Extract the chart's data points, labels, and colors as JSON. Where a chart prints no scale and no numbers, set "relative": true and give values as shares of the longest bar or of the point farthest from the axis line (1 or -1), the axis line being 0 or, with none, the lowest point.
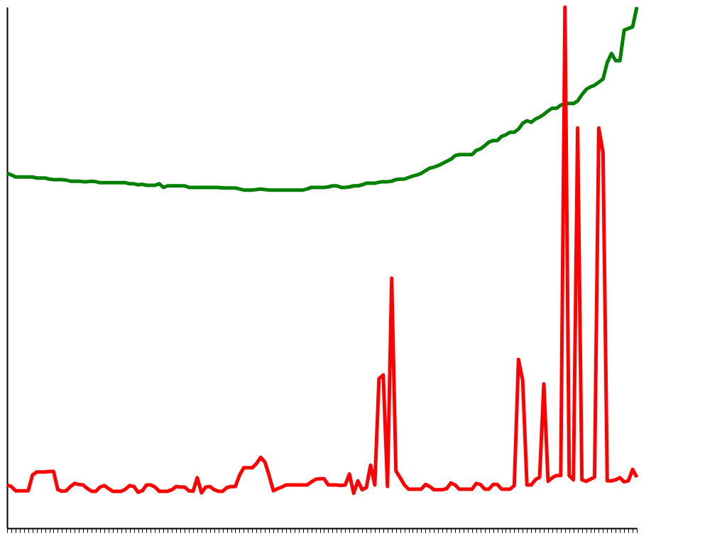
{
  "chart_data": {
    "type": "line",
    "relative": true,
    "categories": [
      null,
      null,
      null,
      null,
      null,
      null,
      null,
      null,
      null,
      null,
      null,
      null,
      null,
      null,
      null,
      null,
      null,
      null,
      null,
      null,
      null,
      null,
      null,
      null,
      null,
      null,
      null,
      null,
      null,
      null,
      null,
      null,
      null,
      null,
      null,
      null,
      null,
      null,
      null,
      null,
      null,
      null,
      null,
      null,
      null,
      null,
      null,
      null,
      null,
      null,
      null,
      null,
      null,
      null,
      null,
      null,
      null,
      null,
      null,
      null,
      null,
      null,
      null,
      null,
      null,
      null,
      null,
      null,
      null,
      null,
      null,
      null,
      null,
      null,
      null,
      null,
      null,
      null,
      null,
      null,
      null,
      null,
      null,
      null,
      null,
      null,
      null,
      null,
      null,
      null,
      null,
      null,
      null,
      null,
      null,
      null,
      null,
      null,
      null,
      null,
      null,
      null,
      null,
      null,
      null,
      null,
      null,
      null,
      null,
      null,
      null,
      null,
      null,
      null,
      null,
      null,
      null,
      null,
      null,
      null,
      null,
      null,
      null,
      null,
      null,
      null,
      null,
      null,
      null,
      null,
      null,
      null,
      null,
      null,
      null,
      null,
      null,
      null,
      null,
      null,
      null,
      null,
      null,
      null,
      null,
      null,
      null,
      null,
      null,
      null
    ],
    "series": [
      {
        "color": "#008000",
        "values": [
          0.681,
          0.678,
          0.674,
          0.674,
          0.674,
          0.674,
          0.674,
          0.672,
          0.672,
          0.672,
          0.67,
          0.669,
          0.669,
          0.669,
          0.668,
          0.666,
          0.666,
          0.666,
          0.665,
          0.665,
          0.666,
          0.665,
          0.663,
          0.663,
          0.663,
          0.663,
          0.663,
          0.663,
          0.663,
          0.661,
          0.661,
          0.659,
          0.66,
          0.658,
          0.658,
          0.658,
          0.661,
          0.654,
          0.657,
          0.657,
          0.657,
          0.657,
          0.657,
          0.654,
          0.654,
          0.654,
          0.654,
          0.654,
          0.654,
          0.654,
          0.654,
          0.653,
          0.653,
          0.653,
          0.653,
          0.651,
          0.649,
          0.649,
          0.649,
          0.65,
          0.651,
          0.65,
          0.649,
          0.649,
          0.649,
          0.649,
          0.649,
          0.649,
          0.649,
          0.649,
          0.649,
          0.651,
          0.654,
          0.654,
          0.654,
          0.654,
          0.655,
          0.657,
          0.657,
          0.654,
          0.654,
          0.655,
          0.657,
          0.657,
          0.659,
          0.662,
          0.662,
          0.662,
          0.664,
          0.665,
          0.665,
          0.666,
          0.669,
          0.67,
          0.67,
          0.673,
          0.676,
          0.678,
          0.681,
          0.686,
          0.691,
          0.693,
          0.696,
          0.7,
          0.704,
          0.708,
          0.715,
          0.717,
          0.717,
          0.717,
          0.717,
          0.725,
          0.728,
          0.734,
          0.741,
          0.744,
          0.744,
          0.752,
          0.755,
          0.76,
          0.76,
          0.766,
          0.777,
          0.782,
          0.779,
          0.785,
          0.789,
          0.794,
          0.801,
          0.806,
          0.806,
          0.812,
          0.815,
          0.815,
          0.815,
          0.82,
          0.832,
          0.842,
          0.847,
          0.85,
          0.856,
          0.862,
          0.894,
          0.911,
          0.897,
          0.897,
          0.956,
          0.959,
          0.962,
          1
        ]
      },
      {
        "color": "#ff0000",
        "values": [
          0.083,
          0.08,
          0.072,
          0.072,
          0.072,
          0.072,
          0.102,
          0.108,
          0.108,
          0.108,
          0.109,
          0.109,
          0.074,
          0.071,
          0.072,
          0.08,
          0.086,
          0.084,
          0.083,
          0.076,
          0.071,
          0.071,
          0.079,
          0.082,
          0.076,
          0.071,
          0.071,
          0.071,
          0.075,
          0.082,
          0.08,
          0.069,
          0.072,
          0.083,
          0.083,
          0.079,
          0.071,
          0.071,
          0.071,
          0.074,
          0.08,
          0.079,
          0.079,
          0.072,
          0.071,
          0.097,
          0.068,
          0.079,
          0.08,
          0.074,
          0.071,
          0.071,
          0.078,
          0.08,
          0.08,
          0.102,
          0.116,
          0.116,
          0.116,
          0.124,
          0.136,
          0.127,
          0.101,
          0.072,
          0.076,
          0.079,
          0.083,
          0.083,
          0.083,
          0.083,
          0.083,
          0.083,
          0.089,
          0.094,
          0.095,
          0.095,
          0.083,
          0.083,
          0.083,
          0.082,
          0.083,
          0.104,
          0.067,
          0.091,
          0.074,
          0.078,
          0.121,
          0.083,
          0.287,
          0.294,
          0.08,
          0.48,
          0.11,
          0.097,
          0.083,
          0.075,
          0.075,
          0.075,
          0.075,
          0.084,
          0.08,
          0.074,
          0.074,
          0.074,
          0.076,
          0.087,
          0.083,
          0.075,
          0.075,
          0.075,
          0.075,
          0.086,
          0.084,
          0.075,
          0.075,
          0.084,
          0.084,
          0.075,
          0.075,
          0.075,
          0.082,
          0.324,
          0.283,
          0.083,
          0.083,
          0.093,
          0.098,
          0.277,
          0.09,
          0.097,
          0.101,
          0.101,
          1,
          0.101,
          0.093,
          0.768,
          0.093,
          0.09,
          0.094,
          0.098,
          0.768,
          0.721,
          0.091,
          0.091,
          0.093,
          0.097,
          0.089,
          0.091,
          0.113,
          0.098
        ]
      }
    ]
  }
}
